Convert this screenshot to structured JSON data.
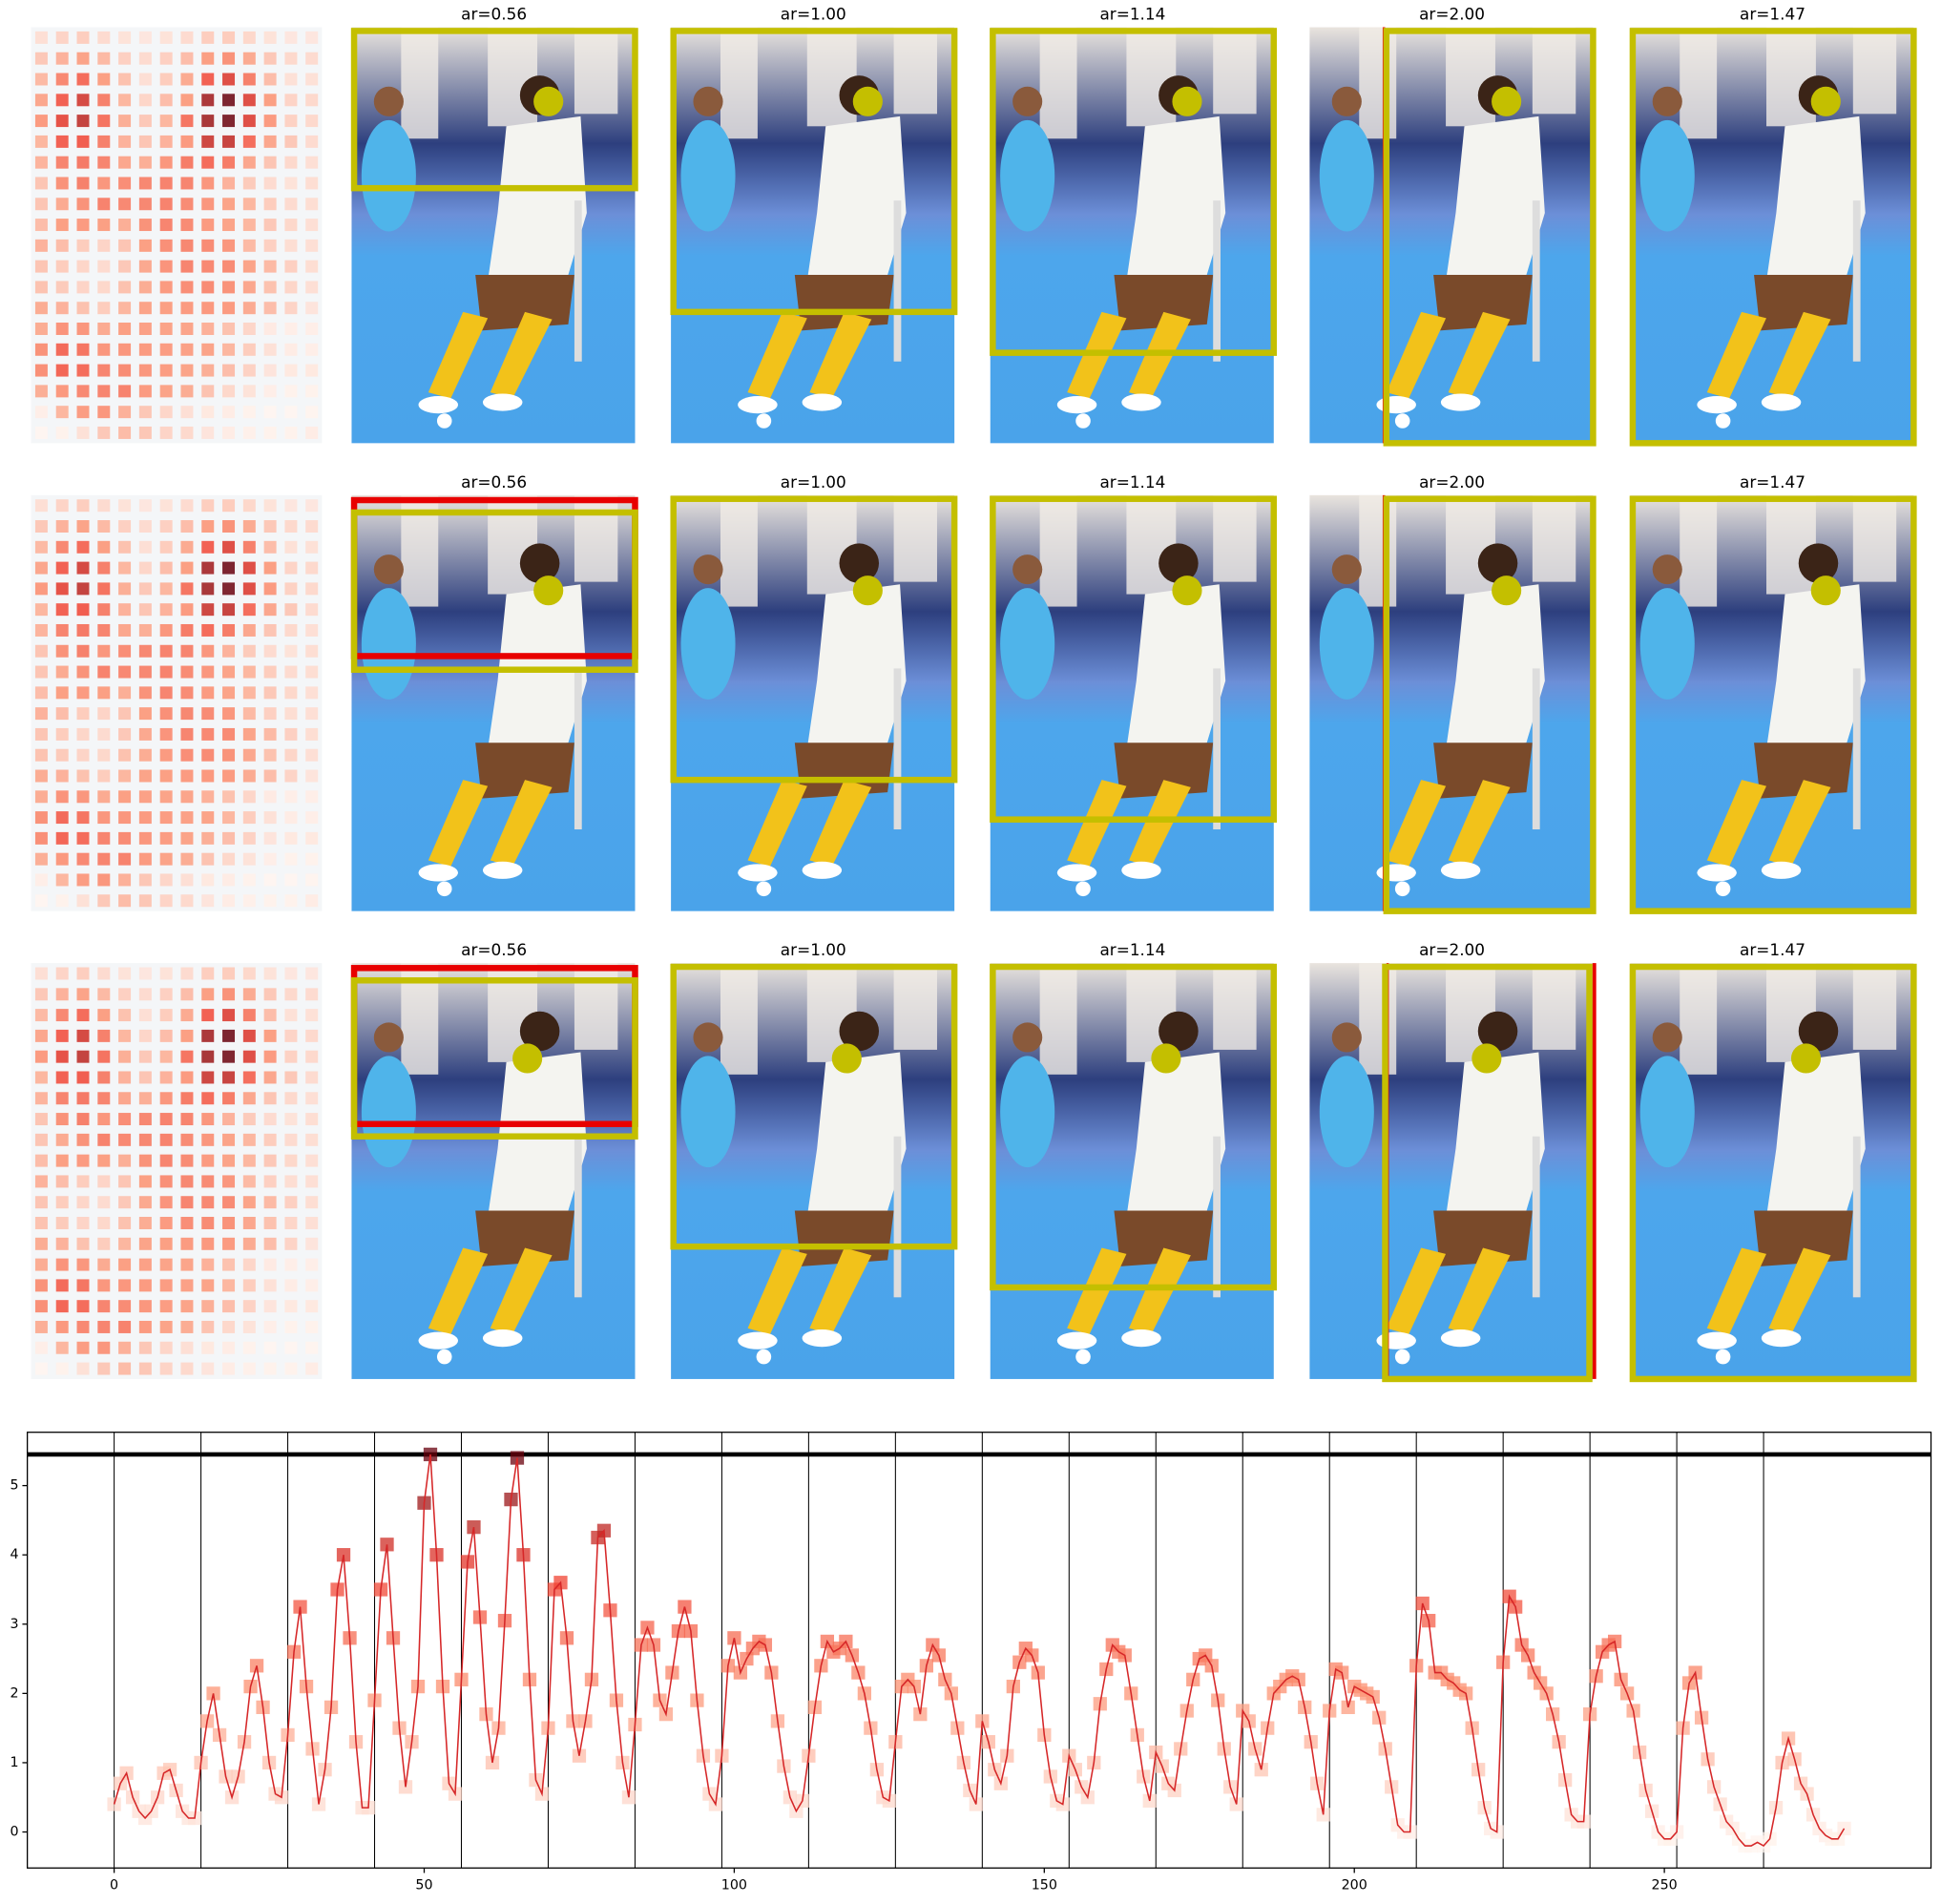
{
  "panels": {
    "titles": [
      [
        "ar=0.56",
        "ar=1.00",
        "ar=1.14",
        "ar=2.00",
        "ar=1.47"
      ],
      [
        "ar=0.56",
        "ar=1.00",
        "ar=1.14",
        "ar=2.00",
        "ar=1.47"
      ],
      [
        "ar=0.56",
        "ar=1.00",
        "ar=1.14",
        "ar=2.00",
        "ar=1.47"
      ]
    ]
  },
  "chart_data": {
    "type": "line",
    "color": "#d62728",
    "marker": "square",
    "x": [
      0,
      1,
      2,
      3,
      4,
      5,
      6,
      7,
      8,
      9,
      10,
      11,
      12,
      13,
      14,
      15,
      16,
      17,
      18,
      19,
      20,
      21,
      22,
      23,
      24,
      25,
      26,
      27,
      28,
      29,
      30,
      31,
      32,
      33,
      34,
      35,
      36,
      37,
      38,
      39,
      40,
      41,
      42,
      43,
      44,
      45,
      46,
      47,
      48,
      49,
      50,
      51,
      52,
      53,
      54,
      55,
      56,
      57,
      58,
      59,
      60,
      61,
      62,
      63,
      64,
      65,
      66,
      67,
      68,
      69,
      70,
      71,
      72,
      73,
      74,
      75,
      76,
      77,
      78,
      79,
      80,
      81,
      82,
      83,
      84,
      85,
      86,
      87,
      88,
      89,
      90,
      91,
      92,
      93,
      94,
      95,
      96,
      97,
      98,
      99,
      100,
      101,
      102,
      103,
      104,
      105,
      106,
      107,
      108,
      109,
      110,
      111,
      112,
      113,
      114,
      115,
      116,
      117,
      118,
      119,
      120,
      121,
      122,
      123,
      124,
      125,
      126,
      127,
      128,
      129,
      130,
      131,
      132,
      133,
      134,
      135,
      136,
      137,
      138,
      139,
      140,
      141,
      142,
      143,
      144,
      145,
      146,
      147,
      148,
      149,
      150,
      151,
      152,
      153,
      154,
      155,
      156,
      157,
      158,
      159,
      160,
      161,
      162,
      163,
      164,
      165,
      166,
      167,
      168,
      169,
      170,
      171,
      172,
      173,
      174,
      175,
      176,
      177,
      178,
      179,
      180,
      181,
      182,
      183,
      184,
      185,
      186,
      187,
      188,
      189,
      190,
      191,
      192,
      193,
      194,
      195,
      196,
      197,
      198,
      199,
      200,
      201,
      202,
      203,
      204,
      205,
      206,
      207,
      208,
      209,
      210,
      211,
      212,
      213,
      214,
      215,
      216,
      217,
      218,
      219,
      220,
      221,
      222,
      223,
      224,
      225,
      226,
      227,
      228,
      229,
      230,
      231,
      232,
      233,
      234,
      235,
      236,
      237,
      238,
      239,
      240,
      241,
      242,
      243,
      244,
      245,
      246,
      247,
      248,
      249,
      250,
      251,
      252,
      253,
      254,
      255,
      256,
      257,
      258,
      259,
      260,
      261,
      262,
      263,
      264,
      265,
      266,
      267,
      268,
      269,
      270,
      271,
      272,
      273,
      274,
      275,
      276,
      277,
      278,
      279
    ],
    "values": [
      0.4,
      0.7,
      0.85,
      0.5,
      0.3,
      0.2,
      0.3,
      0.5,
      0.85,
      0.9,
      0.6,
      0.3,
      0.2,
      0.2,
      1.0,
      1.6,
      2.0,
      1.4,
      0.8,
      0.5,
      0.8,
      1.3,
      2.1,
      2.4,
      1.8,
      1.0,
      0.55,
      0.5,
      1.4,
      2.6,
      3.25,
      2.1,
      1.2,
      0.4,
      0.9,
      1.8,
      3.5,
      4.0,
      2.8,
      1.3,
      0.35,
      0.35,
      1.9,
      3.5,
      4.15,
      2.8,
      1.5,
      0.65,
      1.3,
      2.1,
      4.75,
      5.45,
      4.0,
      2.1,
      0.7,
      0.55,
      2.2,
      3.9,
      4.4,
      3.1,
      1.7,
      1.0,
      1.5,
      3.05,
      4.8,
      5.4,
      4.0,
      2.2,
      0.75,
      0.55,
      1.5,
      3.5,
      3.6,
      2.8,
      1.6,
      1.1,
      1.6,
      2.2,
      4.25,
      4.35,
      3.2,
      1.9,
      1.0,
      0.5,
      1.55,
      2.7,
      2.95,
      2.7,
      1.9,
      1.7,
      2.3,
      2.9,
      3.25,
      2.9,
      1.9,
      1.1,
      0.55,
      0.4,
      1.1,
      2.4,
      2.8,
      2.3,
      2.5,
      2.65,
      2.75,
      2.7,
      2.3,
      1.6,
      0.95,
      0.5,
      0.3,
      0.45,
      1.1,
      1.8,
      2.4,
      2.75,
      2.6,
      2.65,
      2.75,
      2.55,
      2.3,
      2.0,
      1.5,
      0.9,
      0.5,
      0.45,
      1.3,
      2.1,
      2.2,
      2.1,
      1.7,
      2.4,
      2.7,
      2.55,
      2.2,
      2.0,
      1.5,
      1.0,
      0.6,
      0.4,
      1.6,
      1.3,
      0.9,
      0.7,
      1.1,
      2.1,
      2.45,
      2.65,
      2.55,
      2.3,
      1.4,
      0.8,
      0.45,
      0.4,
      1.1,
      0.9,
      0.65,
      0.5,
      1.0,
      1.85,
      2.35,
      2.7,
      2.6,
      2.55,
      2.0,
      1.4,
      0.8,
      0.45,
      1.15,
      0.95,
      0.7,
      0.6,
      1.2,
      1.75,
      2.2,
      2.5,
      2.55,
      2.4,
      1.9,
      1.2,
      0.65,
      0.4,
      1.75,
      1.6,
      1.2,
      0.9,
      1.5,
      2.0,
      2.1,
      2.2,
      2.25,
      2.2,
      1.8,
      1.3,
      0.7,
      0.25,
      1.75,
      2.35,
      2.3,
      1.8,
      2.1,
      2.05,
      2.0,
      1.95,
      1.65,
      1.2,
      0.65,
      0.1,
      0.0,
      0.0,
      2.4,
      3.3,
      3.05,
      2.3,
      2.3,
      2.2,
      2.15,
      2.05,
      2.0,
      1.5,
      0.9,
      0.35,
      0.05,
      0.0,
      2.45,
      3.4,
      3.25,
      2.7,
      2.55,
      2.3,
      2.15,
      2.0,
      1.7,
      1.3,
      0.75,
      0.25,
      0.15,
      0.15,
      1.7,
      2.25,
      2.6,
      2.7,
      2.75,
      2.2,
      2.0,
      1.75,
      1.15,
      0.6,
      0.3,
      0.0,
      -0.1,
      -0.1,
      0.0,
      1.5,
      2.15,
      2.3,
      1.65,
      1.05,
      0.65,
      0.4,
      0.15,
      0.05,
      -0.1,
      -0.2,
      -0.2,
      -0.15,
      -0.2,
      -0.1,
      0.35,
      1.0,
      1.35,
      1.05,
      0.7,
      0.55,
      0.25,
      0.05,
      -0.05,
      -0.1,
      -0.1,
      0.05
    ],
    "xlim": [
      -14,
      293
    ],
    "ylim": [
      -0.52,
      5.77
    ],
    "xticks": [
      0,
      50,
      100,
      150,
      200,
      250
    ],
    "yticks": [
      0,
      1,
      2,
      3,
      4,
      5
    ],
    "vlines": [
      0,
      14,
      28,
      42,
      56,
      70,
      84,
      98,
      112,
      126,
      140,
      154,
      168,
      182,
      196,
      210,
      224,
      238,
      252,
      266
    ],
    "hline": 5.45
  }
}
